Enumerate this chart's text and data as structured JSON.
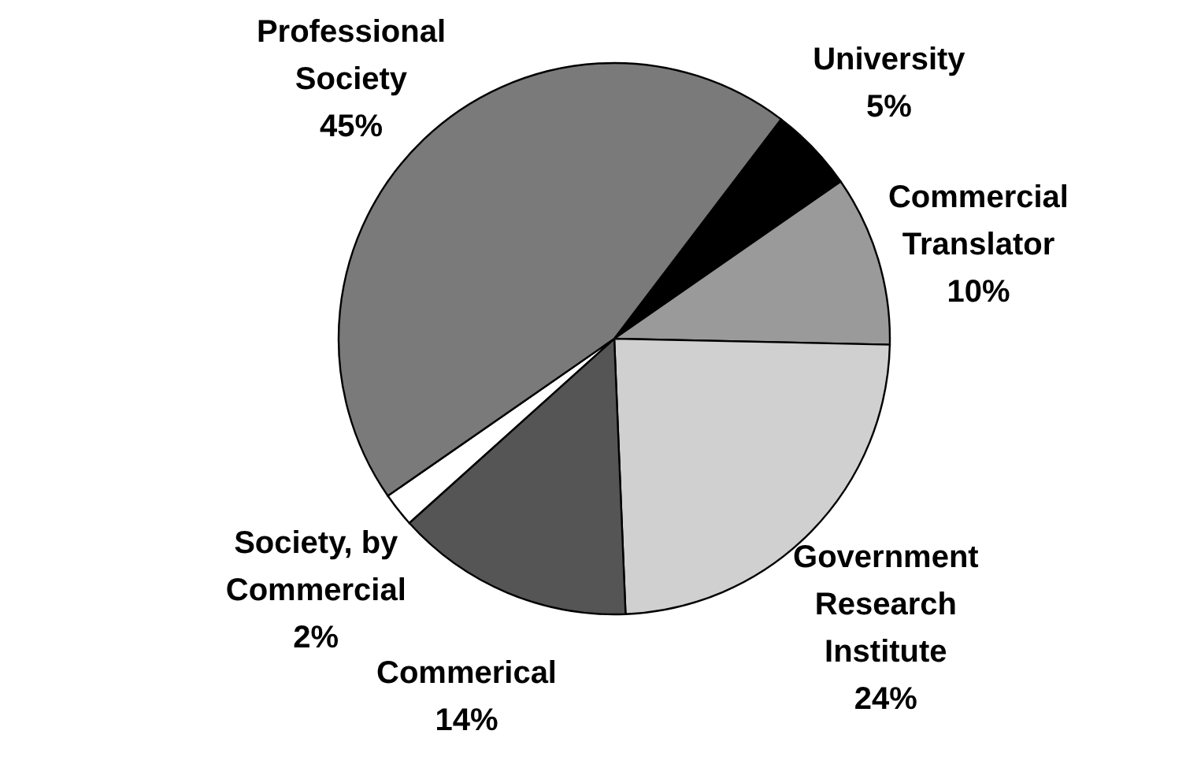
{
  "chart_data": {
    "type": "pie",
    "categories": [
      "University",
      "Commercial Translator",
      "Government Research Institute",
      "Commerical",
      "Society, by Commercial",
      "Professional Society"
    ],
    "values": [
      5,
      10,
      24,
      14,
      2,
      45
    ],
    "colors": [
      "#000000",
      "#9a9a9a",
      "#d0d0d0",
      "#555555",
      "#ffffff",
      "#7a7a7a"
    ],
    "value_labels": [
      "5%",
      "10%",
      "24%",
      "14%",
      "2%",
      "45%"
    ]
  }
}
